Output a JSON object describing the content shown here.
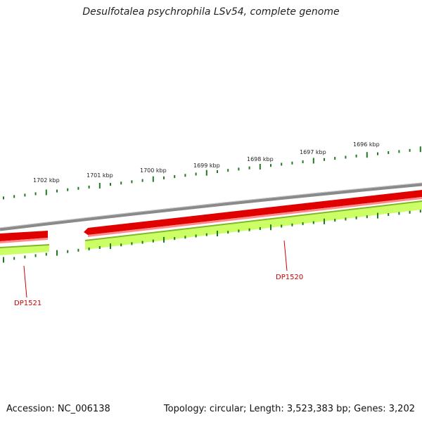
{
  "title": "Desulfotalea psychrophila LSv54, complete genome",
  "footer": {
    "accession": "Accession: NC_006138",
    "summary": "Topology: circular; Length: 3,523,383 bp; Genes: 3,202"
  },
  "ticks": {
    "labels": [
      "1702 kbp",
      "1701 kbp",
      "1700 kbp",
      "1699 kbp",
      "1698 kbp",
      "1697 kbp",
      "1696 kbp"
    ]
  },
  "genes": [
    {
      "label": "DP1521"
    },
    {
      "label": "DP1520"
    }
  ],
  "colors": {
    "backbone": "#8a8a8a",
    "forward_strand": "#e00000",
    "forward_strand_light": "#ff8a8a",
    "gc_track": "#9adf2a",
    "gc_track_light": "#ccff66",
    "tick": "#1f7a1f",
    "gene_label": "#cc0000"
  }
}
